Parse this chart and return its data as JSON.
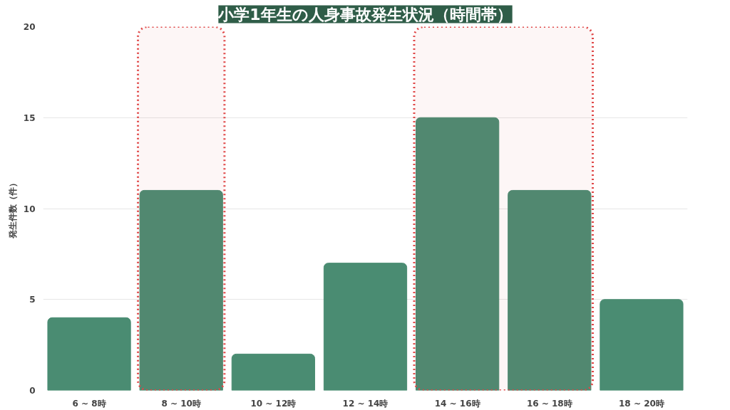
{
  "chart_data": {
    "type": "bar",
    "title": "小学1年生の人身事故発生状況（時間帯）",
    "ylabel": "発生件数（件）",
    "categories": [
      "6 ~ 8時",
      "8 ~ 10時",
      "10 ~ 12時",
      "12 ~ 14時",
      "14 ~ 16時",
      "16 ~ 18時",
      "18 ~ 20時"
    ],
    "values": [
      4,
      11,
      2,
      7,
      15,
      11,
      5
    ],
    "color": "#4a8c72",
    "ylim": [
      0,
      20
    ],
    "yticks": [
      0,
      5,
      10,
      15,
      20
    ],
    "grid": "y",
    "bands": [
      {
        "axis": "x",
        "from": "8 ~ 10時",
        "to": "8 ~ 10時",
        "color": "#e04848"
      },
      {
        "axis": "x",
        "from": "14 ~ 16時",
        "to": "16 ~ 18時",
        "color": "#e04848"
      }
    ]
  }
}
